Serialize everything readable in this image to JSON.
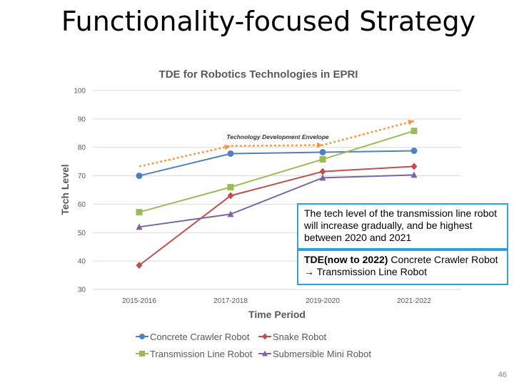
{
  "slide": {
    "title": "Functionality-focused Strategy",
    "page_number": "46"
  },
  "chart_data": {
    "type": "line",
    "title": "TDE for Robotics Technologies in EPRI",
    "xlabel": "Time Period",
    "ylabel": "Tech Level",
    "categories": [
      "2015-2016",
      "2017-2018",
      "2019-2020",
      "2021-2022"
    ],
    "ylim": [
      30,
      100
    ],
    "yticks": [
      30,
      40,
      50,
      60,
      70,
      80,
      90,
      100
    ],
    "grid": true,
    "legend_position": "bottom",
    "series": [
      {
        "name": "Concrete Crawler Robot",
        "values": [
          70,
          77.8,
          78.3,
          78.8
        ],
        "color": "#4f81bd",
        "marker": "circle"
      },
      {
        "name": "Snake Robot",
        "values": [
          38.5,
          63,
          71.5,
          73.3
        ],
        "color": "#c0504d",
        "marker": "diamond"
      },
      {
        "name": "Transmission Line Robot",
        "values": [
          57.2,
          66,
          75.8,
          85.8
        ],
        "color": "#9bbb59",
        "marker": "square"
      },
      {
        "name": "Submersible Mini Robot",
        "values": [
          52,
          56.5,
          69.3,
          70.3
        ],
        "color": "#8064a2",
        "marker": "triangle"
      }
    ],
    "envelope": {
      "label": "Technology Development Envelope",
      "values": [
        73.3,
        80.5,
        80.8,
        89.3
      ],
      "color": "#f79646"
    }
  },
  "callouts": {
    "first": "The tech level of the transmission line robot will increase gradually, and be highest between 2020 and 2021",
    "second_bold": "TDE(now to 2022)",
    "second_text": " Concrete Crawler Robot → Transmission Line Robot"
  }
}
